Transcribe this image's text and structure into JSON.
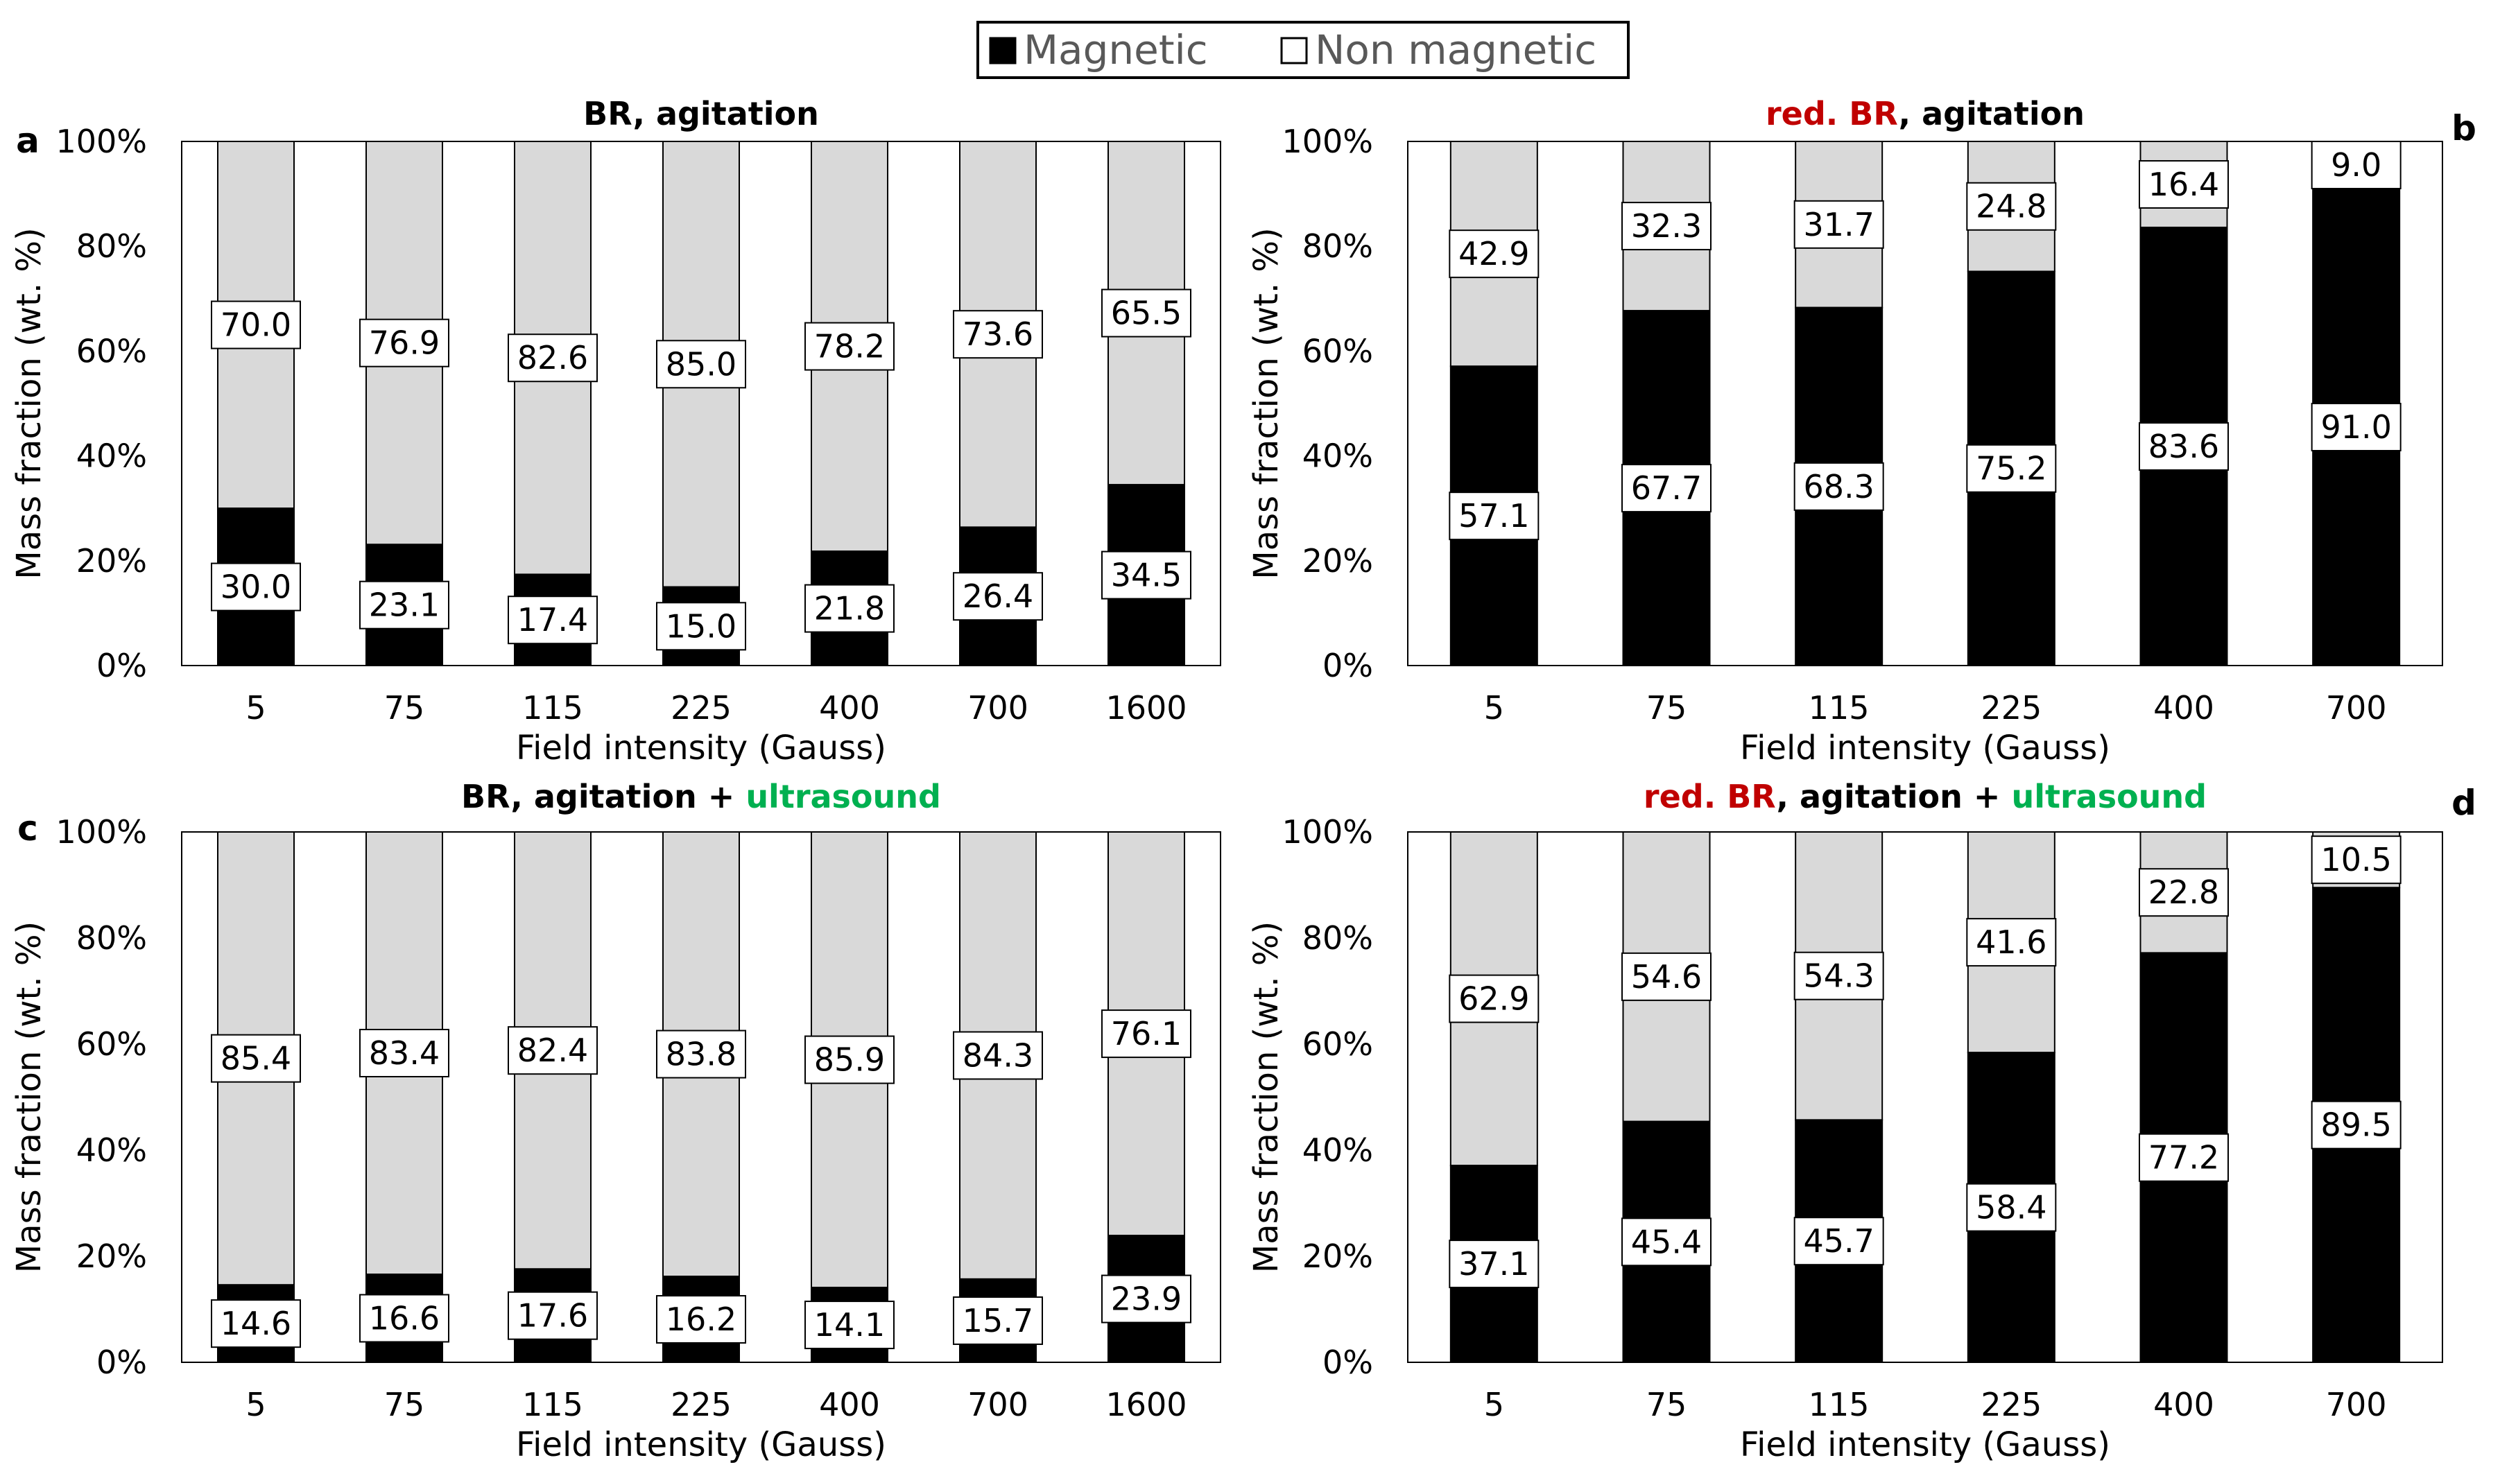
{
  "legend": {
    "items": [
      {
        "label": "Magnetic",
        "color": "#000000"
      },
      {
        "label": "Non magnetic",
        "color": "#ffffff"
      }
    ]
  },
  "colors": {
    "magnetic": "#000000",
    "non_magnetic": "#d9d9d9",
    "red": "#c00000",
    "green": "#00b050"
  },
  "chart_data": [
    {
      "type": "bar",
      "stacked": true,
      "panel": "a",
      "title_parts": [
        {
          "text": "BR, agitation",
          "color": "#000000"
        }
      ],
      "categories": [
        "5",
        "75",
        "115",
        "225",
        "400",
        "700",
        "1600"
      ],
      "series": [
        {
          "name": "Magnetic",
          "values": [
            30.0,
            23.1,
            17.4,
            15.0,
            21.8,
            26.4,
            34.5
          ]
        },
        {
          "name": "Non magnetic",
          "values": [
            70.0,
            76.9,
            82.6,
            85.0,
            78.2,
            73.6,
            65.5
          ]
        }
      ],
      "xlabel": "Field intensity (Gauss)",
      "ylabel": "Mass fraction (wt. %)",
      "ylim": [
        0,
        100
      ],
      "yticks": [
        "0%",
        "20%",
        "40%",
        "60%",
        "80%",
        "100%"
      ]
    },
    {
      "type": "bar",
      "stacked": true,
      "panel": "b",
      "title_parts": [
        {
          "text": "red. BR",
          "color": "#c00000"
        },
        {
          "text": ", agitation",
          "color": "#000000"
        }
      ],
      "categories": [
        "5",
        "75",
        "115",
        "225",
        "400",
        "700"
      ],
      "series": [
        {
          "name": "Magnetic",
          "values": [
            57.1,
            67.7,
            68.3,
            75.2,
            83.6,
            91.0
          ]
        },
        {
          "name": "Non magnetic",
          "values": [
            42.9,
            32.3,
            31.7,
            24.8,
            16.4,
            9.0
          ]
        }
      ],
      "xlabel": "Field intensity (Gauss)",
      "ylabel": "Mass fraction (wt. %)",
      "ylim": [
        0,
        100
      ],
      "yticks": [
        "0%",
        "20%",
        "40%",
        "60%",
        "80%",
        "100%"
      ]
    },
    {
      "type": "bar",
      "stacked": true,
      "panel": "c",
      "title_parts": [
        {
          "text": "BR, agitation + ",
          "color": "#000000"
        },
        {
          "text": "ultrasound",
          "color": "#00b050"
        }
      ],
      "categories": [
        "5",
        "75",
        "115",
        "225",
        "400",
        "700",
        "1600"
      ],
      "series": [
        {
          "name": "Magnetic",
          "values": [
            14.6,
            16.6,
            17.6,
            16.2,
            14.1,
            15.7,
            23.9
          ]
        },
        {
          "name": "Non magnetic",
          "values": [
            85.4,
            83.4,
            82.4,
            83.8,
            85.9,
            84.3,
            76.1
          ]
        }
      ],
      "xlabel": "Field intensity (Gauss)",
      "ylabel": "Mass fraction (wt. %)",
      "ylim": [
        0,
        100
      ],
      "yticks": [
        "0%",
        "20%",
        "40%",
        "60%",
        "80%",
        "100%"
      ]
    },
    {
      "type": "bar",
      "stacked": true,
      "panel": "d",
      "title_parts": [
        {
          "text": "red. BR",
          "color": "#c00000"
        },
        {
          "text": ", agitation + ",
          "color": "#000000"
        },
        {
          "text": "ultrasound",
          "color": "#00b050"
        }
      ],
      "categories": [
        "5",
        "75",
        "115",
        "225",
        "400",
        "700"
      ],
      "series": [
        {
          "name": "Magnetic",
          "values": [
            37.1,
            45.4,
            45.7,
            58.4,
            77.2,
            89.5
          ]
        },
        {
          "name": "Non magnetic",
          "values": [
            62.9,
            54.6,
            54.3,
            41.6,
            22.8,
            10.5
          ]
        }
      ],
      "xlabel": "Field intensity (Gauss)",
      "ylabel": "Mass fraction (wt. %)",
      "ylim": [
        0,
        100
      ],
      "yticks": [
        "0%",
        "20%",
        "40%",
        "60%",
        "80%",
        "100%"
      ]
    }
  ]
}
